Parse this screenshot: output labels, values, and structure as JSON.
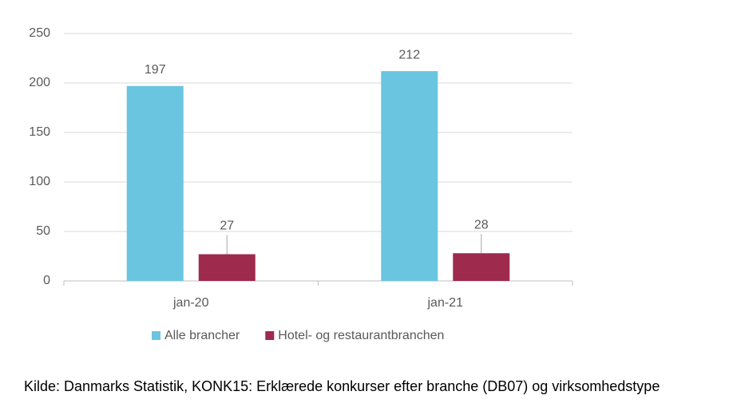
{
  "chart_data": {
    "type": "bar",
    "categories": [
      "jan-20",
      "jan-21"
    ],
    "series": [
      {
        "name": "Alle brancher",
        "color": "#6ac6e0",
        "values": [
          197,
          212
        ]
      },
      {
        "name": "Hotel- og restaurantbranchen",
        "color": "#9e2a4e",
        "values": [
          27,
          28
        ]
      }
    ],
    "ylim": [
      0,
      250
    ],
    "yticks": [
      0,
      50,
      100,
      150,
      200,
      250
    ],
    "grid": true,
    "source": "Kilde: Danmarks Statistik, KONK15: Erklærede konkurser efter branche (DB07) og virksomhedstype"
  }
}
